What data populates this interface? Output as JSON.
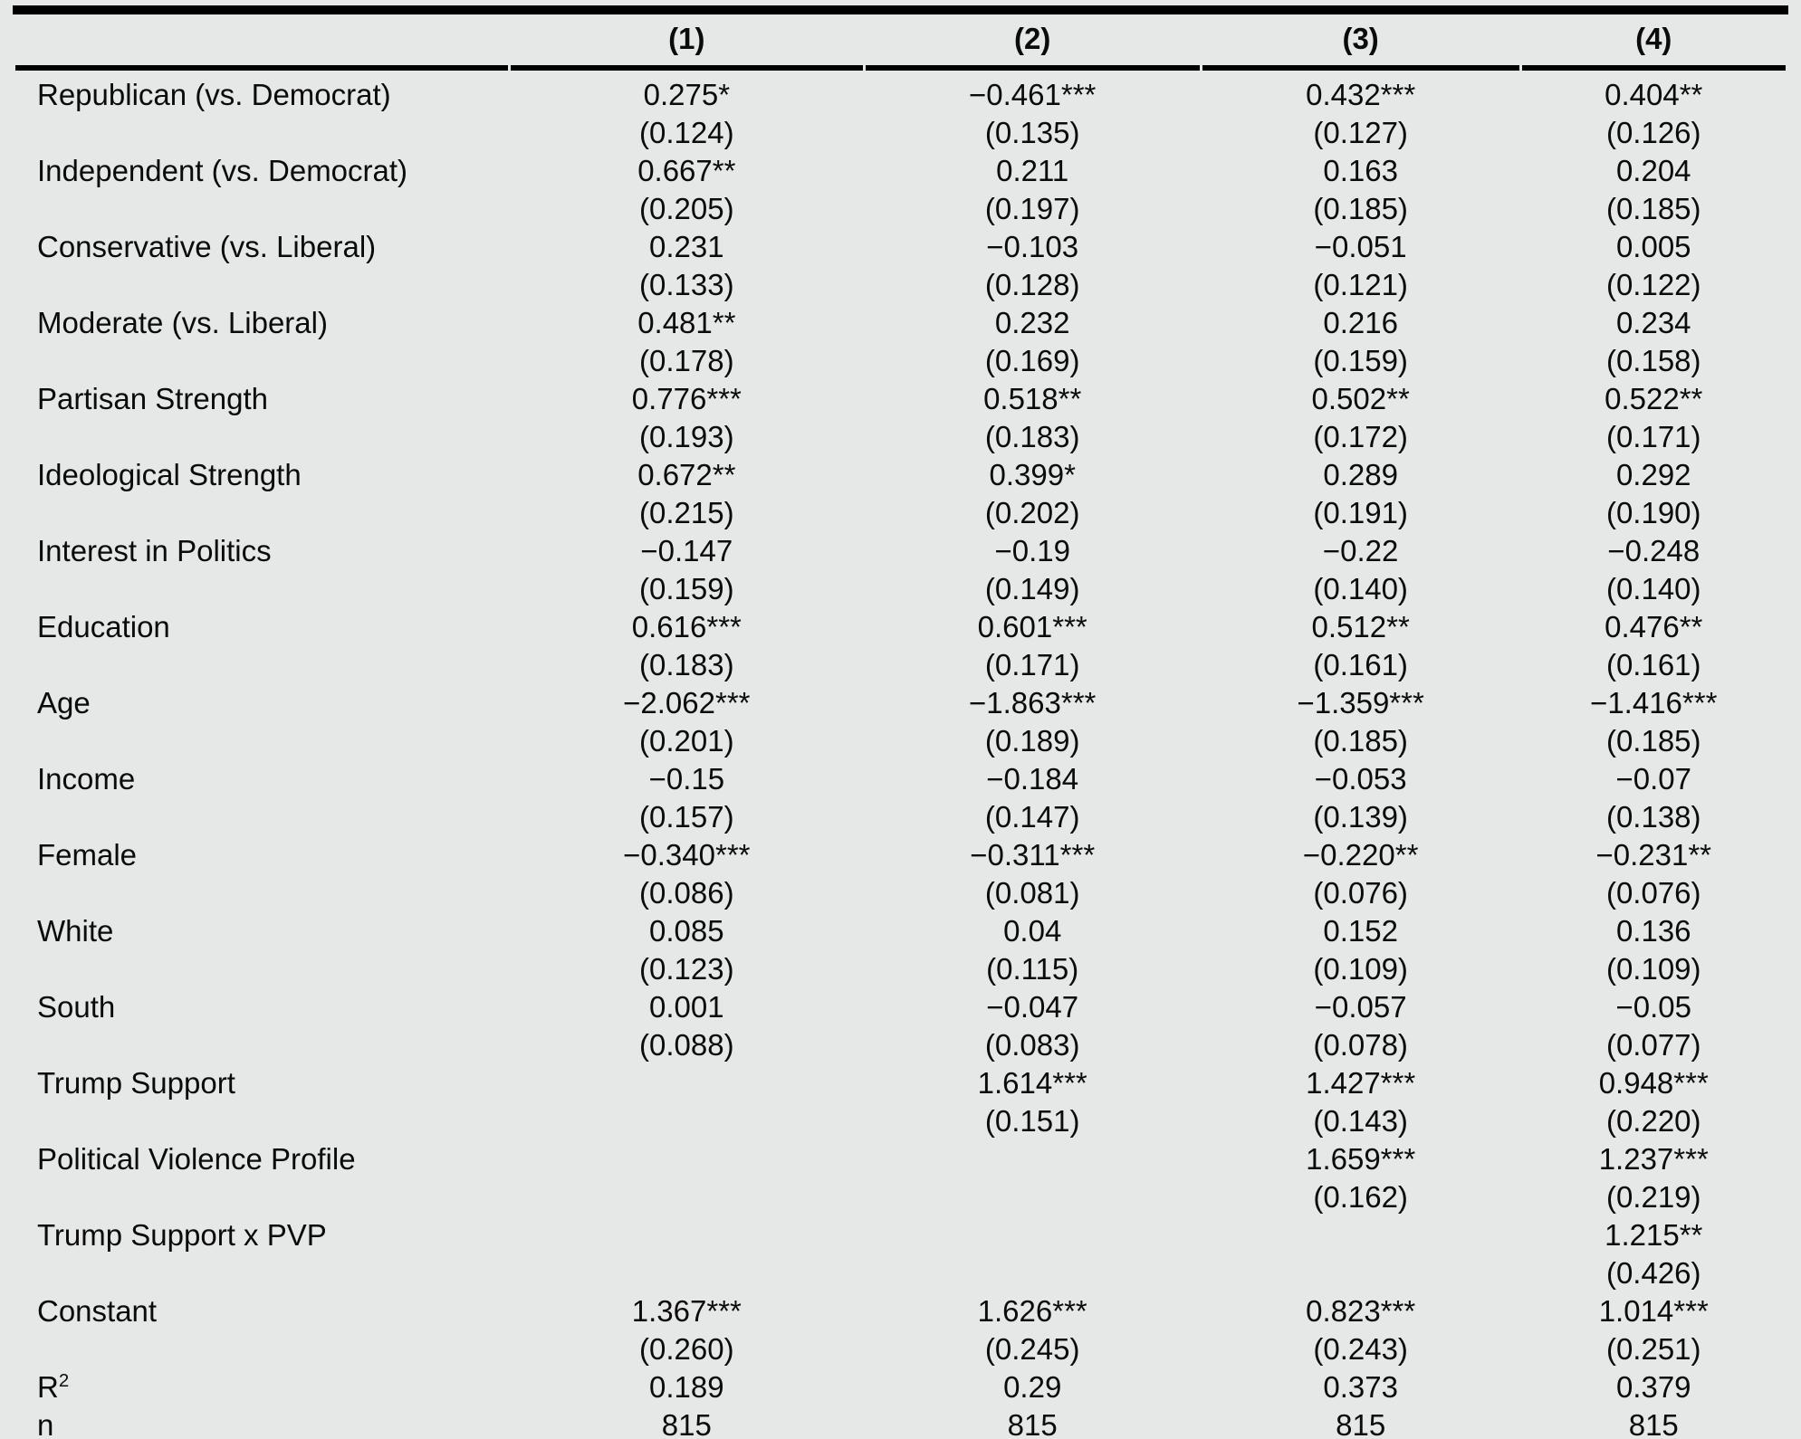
{
  "table": {
    "columns": [
      "(1)",
      "(2)",
      "(3)",
      "(4)"
    ],
    "rows": [
      {
        "label": "Republican (vs. Democrat)",
        "coefs": [
          "0.275*",
          "−0.461***",
          "0.432***",
          "0.404**"
        ],
        "ses": [
          "(0.124)",
          "(0.135)",
          "(0.127)",
          "(0.126)"
        ]
      },
      {
        "label": "Independent (vs. Democrat)",
        "coefs": [
          "0.667**",
          "0.211",
          "0.163",
          "0.204"
        ],
        "ses": [
          "(0.205)",
          "(0.197)",
          "(0.185)",
          "(0.185)"
        ]
      },
      {
        "label": "Conservative (vs. Liberal)",
        "coefs": [
          "0.231",
          "−0.103",
          "−0.051",
          "0.005"
        ],
        "ses": [
          "(0.133)",
          "(0.128)",
          "(0.121)",
          "(0.122)"
        ]
      },
      {
        "label": "Moderate (vs. Liberal)",
        "coefs": [
          "0.481**",
          "0.232",
          "0.216",
          "0.234"
        ],
        "ses": [
          "(0.178)",
          "(0.169)",
          "(0.159)",
          "(0.158)"
        ]
      },
      {
        "label": "Partisan Strength",
        "coefs": [
          "0.776***",
          "0.518**",
          "0.502**",
          "0.522**"
        ],
        "ses": [
          "(0.193)",
          "(0.183)",
          "(0.172)",
          "(0.171)"
        ]
      },
      {
        "label": "Ideological Strength",
        "coefs": [
          "0.672**",
          "0.399*",
          "0.289",
          "0.292"
        ],
        "ses": [
          "(0.215)",
          "(0.202)",
          "(0.191)",
          "(0.190)"
        ]
      },
      {
        "label": "Interest in Politics",
        "coefs": [
          "−0.147",
          "−0.19",
          "−0.22",
          "−0.248"
        ],
        "ses": [
          "(0.159)",
          "(0.149)",
          "(0.140)",
          "(0.140)"
        ]
      },
      {
        "label": "Education",
        "coefs": [
          "0.616***",
          "0.601***",
          "0.512**",
          "0.476**"
        ],
        "ses": [
          "(0.183)",
          "(0.171)",
          "(0.161)",
          "(0.161)"
        ]
      },
      {
        "label": "Age",
        "coefs": [
          "−2.062***",
          "−1.863***",
          "−1.359***",
          "−1.416***"
        ],
        "ses": [
          "(0.201)",
          "(0.189)",
          "(0.185)",
          "(0.185)"
        ]
      },
      {
        "label": "Income",
        "coefs": [
          "−0.15",
          "−0.184",
          "−0.053",
          "−0.07"
        ],
        "ses": [
          "(0.157)",
          "(0.147)",
          "(0.139)",
          "(0.138)"
        ]
      },
      {
        "label": "Female",
        "coefs": [
          "−0.340***",
          "−0.311***",
          "−0.220**",
          "−0.231**"
        ],
        "ses": [
          "(0.086)",
          "(0.081)",
          "(0.076)",
          "(0.076)"
        ]
      },
      {
        "label": "White",
        "coefs": [
          "0.085",
          "0.04",
          "0.152",
          "0.136"
        ],
        "ses": [
          "(0.123)",
          "(0.115)",
          "(0.109)",
          "(0.109)"
        ]
      },
      {
        "label": "South",
        "coefs": [
          "0.001",
          "−0.047",
          "−0.057",
          "−0.05"
        ],
        "ses": [
          "(0.088)",
          "(0.083)",
          "(0.078)",
          "(0.077)"
        ]
      },
      {
        "label": "Trump Support",
        "coefs": [
          "",
          "1.614***",
          "1.427***",
          "0.948***"
        ],
        "ses": [
          "",
          "(0.151)",
          "(0.143)",
          "(0.220)"
        ]
      },
      {
        "label": "Political Violence Profile",
        "coefs": [
          "",
          "",
          "1.659***",
          "1.237***"
        ],
        "ses": [
          "",
          "",
          "(0.162)",
          "(0.219)"
        ]
      },
      {
        "label": "Trump Support x PVP",
        "coefs": [
          "",
          "",
          "",
          "1.215**"
        ],
        "ses": [
          "",
          "",
          "",
          "(0.426)"
        ]
      },
      {
        "label": "Constant",
        "coefs": [
          "1.367***",
          "1.626***",
          "0.823***",
          "1.014***"
        ],
        "ses": [
          "(0.260)",
          "(0.245)",
          "(0.243)",
          "(0.251)"
        ]
      }
    ],
    "stats": [
      {
        "label": "R",
        "label_sup": "2",
        "values": [
          "0.189",
          "0.29",
          "0.373",
          "0.379"
        ]
      },
      {
        "label": "n",
        "values": [
          "815",
          "815",
          "815",
          "815"
        ]
      }
    ]
  }
}
